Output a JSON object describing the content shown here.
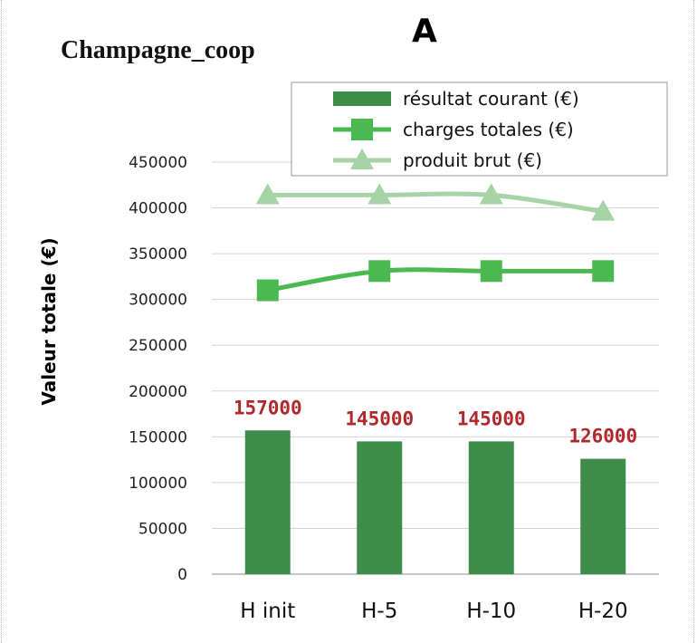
{
  "panel_label": "A",
  "chart_data": {
    "type": "bar",
    "title": "Champagne_coop",
    "xlabel": "",
    "ylabel": "Valeur totale (€)",
    "categories": [
      "H init",
      "H-5",
      "H-10",
      "H-20"
    ],
    "ylim": [
      0,
      450000
    ],
    "yticks": [
      0,
      50000,
      100000,
      150000,
      200000,
      250000,
      300000,
      350000,
      400000,
      450000
    ],
    "grid": true,
    "legend_position": "top-right",
    "series": [
      {
        "name": "résultat courant (€)",
        "type": "bar",
        "values": [
          157000,
          145000,
          145000,
          126000
        ],
        "data_labels": [
          "157000",
          "145000",
          "145000",
          "126000"
        ],
        "color": "#3d8c4a",
        "label_color": "#b0282c"
      },
      {
        "name": "charges totales (€)",
        "type": "line",
        "marker": "square",
        "values": [
          310000,
          331000,
          331000,
          331000
        ],
        "color": "#4cb852"
      },
      {
        "name": "produit brut (€)",
        "type": "line",
        "marker": "triangle",
        "values": [
          414000,
          414000,
          414000,
          396000
        ],
        "color": "#a6d3a6"
      }
    ]
  }
}
